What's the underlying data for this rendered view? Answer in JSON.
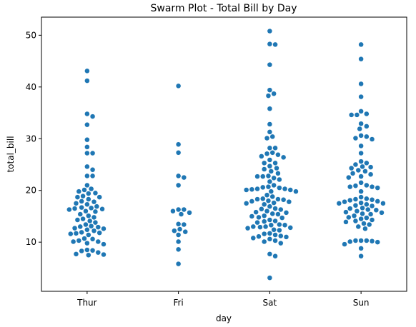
{
  "chart_data": {
    "type": "scatter",
    "subtype": "swarm",
    "title": "Swarm Plot - Total Bill by Day",
    "xlabel": "day",
    "ylabel": "total_bill",
    "categories": [
      "Thur",
      "Fri",
      "Sat",
      "Sun"
    ],
    "ylim": [
      0.5,
      53.5
    ],
    "yticks": [
      10,
      20,
      30,
      40,
      50
    ],
    "grid": false,
    "color": "#1f77b4",
    "series": [
      {
        "category": "Thur",
        "values": [
          43.1,
          41.2,
          34.8,
          34.3,
          32.7,
          29.8,
          28.4,
          27.2,
          27.2,
          24.6,
          24.0,
          22.8,
          22.8,
          21.0,
          20.3,
          20.1,
          19.8,
          19.5,
          19.4,
          18.9,
          18.7,
          18.7,
          18.3,
          17.9,
          17.8,
          17.5,
          17.3,
          16.9,
          16.7,
          16.6,
          16.5,
          16.4,
          16.3,
          16.0,
          15.9,
          15.4,
          15.1,
          14.8,
          14.5,
          14.3,
          14.1,
          13.8,
          13.4,
          13.1,
          13.0,
          12.9,
          12.7,
          12.6,
          12.4,
          12.2,
          11.9,
          11.8,
          11.7,
          11.6,
          11.4,
          10.7,
          10.6,
          10.3,
          10.1,
          10.1,
          9.8,
          9.6,
          8.5,
          8.4,
          8.3,
          8.0,
          7.7,
          7.6,
          7.5
        ]
      },
      {
        "category": "Fri",
        "values": [
          40.2,
          28.9,
          27.3,
          22.8,
          22.5,
          21.0,
          16.3,
          16.3,
          16.0,
          15.7,
          15.4,
          13.5,
          13.4,
          12.5,
          12.2,
          12.0,
          11.4,
          10.1,
          8.6,
          5.8
        ]
      },
      {
        "category": "Sat",
        "values": [
          50.8,
          48.3,
          48.2,
          44.3,
          39.4,
          38.7,
          38.3,
          35.8,
          32.8,
          31.3,
          30.4,
          30.1,
          28.2,
          28.2,
          27.3,
          27.1,
          26.9,
          26.6,
          26.4,
          25.9,
          25.3,
          25.3,
          24.7,
          24.3,
          24.1,
          23.7,
          23.3,
          22.8,
          22.7,
          22.7,
          22.4,
          22.1,
          21.7,
          21.0,
          20.7,
          20.6,
          20.5,
          20.3,
          20.3,
          20.2,
          20.1,
          20.1,
          19.8,
          19.8,
          19.1,
          18.8,
          18.4,
          18.3,
          18.3,
          18.2,
          18.0,
          17.9,
          17.8,
          17.6,
          17.5,
          17.3,
          16.9,
          16.5,
          16.4,
          16.3,
          16.0,
          15.8,
          15.7,
          15.5,
          15.4,
          15.1,
          15.0,
          14.8,
          14.7,
          14.3,
          14.1,
          14.0,
          13.8,
          13.4,
          13.3,
          13.3,
          13.0,
          13.0,
          12.9,
          12.8,
          12.7,
          12.4,
          12.3,
          11.7,
          11.6,
          11.4,
          11.2,
          11.1,
          11.0,
          10.8,
          10.6,
          10.3,
          10.1,
          9.8,
          7.7,
          7.3,
          3.1
        ]
      },
      {
        "category": "Sun",
        "values": [
          48.2,
          45.4,
          40.6,
          38.1,
          35.3,
          34.8,
          34.6,
          34.6,
          32.9,
          32.4,
          31.9,
          30.6,
          30.4,
          30.1,
          29.9,
          28.6,
          27.2,
          25.6,
          25.3,
          25.0,
          24.6,
          24.5,
          24.3,
          23.9,
          23.7,
          23.3,
          23.1,
          22.7,
          22.5,
          21.5,
          21.0,
          20.9,
          20.7,
          20.7,
          20.5,
          19.8,
          18.7,
          18.4,
          18.3,
          18.2,
          18.1,
          17.9,
          17.8,
          17.6,
          17.5,
          17.5,
          17.3,
          17.1,
          17.0,
          16.6,
          16.5,
          16.3,
          16.2,
          16.0,
          15.8,
          15.7,
          15.5,
          15.4,
          15.1,
          14.8,
          14.7,
          14.5,
          14.3,
          14.1,
          13.9,
          13.6,
          13.4,
          13.0,
          12.6,
          10.3,
          10.3,
          10.3,
          10.2,
          10.1,
          10.0,
          9.6,
          8.8,
          7.3
        ]
      }
    ]
  }
}
